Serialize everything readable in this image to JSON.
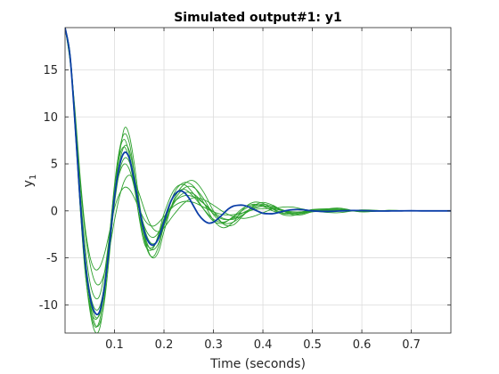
{
  "chart_data": {
    "type": "line",
    "title": "Simulated output#1: y1",
    "xlabel": "Time (seconds)",
    "ylabel": "y",
    "ylabel_sub": "1",
    "xlim": [
      0,
      0.78
    ],
    "ylim": [
      -13,
      19.5
    ],
    "xticks": [
      0.1,
      0.2,
      0.3,
      0.4,
      0.5,
      0.6,
      0.7
    ],
    "xtick_labels": [
      "0.1",
      "0.2",
      "0.3",
      "0.4",
      "0.5",
      "0.6",
      "0.7"
    ],
    "yticks": [
      -10,
      -5,
      0,
      5,
      10,
      15
    ],
    "ytick_labels": [
      "-10",
      "-5",
      "0",
      "5",
      "10",
      "15"
    ],
    "grid": true,
    "colors": {
      "nominal": "#0b3ea8",
      "samples": "#2ca02c",
      "axes": "#262626",
      "grid": "#dcdcdc"
    },
    "series": [
      {
        "role": "nominal",
        "x": [
          0,
          0.01,
          0.02,
          0.03,
          0.04,
          0.05,
          0.06,
          0.07,
          0.08,
          0.09,
          0.1,
          0.11,
          0.12,
          0.13,
          0.14,
          0.15,
          0.16,
          0.17,
          0.18,
          0.19,
          0.2,
          0.21,
          0.22,
          0.23,
          0.24,
          0.25,
          0.26,
          0.27,
          0.28,
          0.29,
          0.3,
          0.31,
          0.32,
          0.33,
          0.34,
          0.35,
          0.36,
          0.37,
          0.38,
          0.39,
          0.4,
          0.41,
          0.42,
          0.43,
          0.44,
          0.45,
          0.46,
          0.47,
          0.48,
          0.49,
          0.5,
          0.52,
          0.54,
          0.56,
          0.58,
          0.6,
          0.62,
          0.64,
          0.66,
          0.68,
          0.7,
          0.72,
          0.74,
          0.76,
          0.78
        ],
        "y": [
          19.5,
          16.5,
          9.5,
          1.5,
          -5.0,
          -9.0,
          -10.8,
          -10.7,
          -8.0,
          -3.5,
          1.5,
          4.8,
          6.2,
          5.6,
          3.2,
          0.3,
          -2.2,
          -3.4,
          -3.6,
          -2.8,
          -1.2,
          0.5,
          1.6,
          2.1,
          2.0,
          1.4,
          0.5,
          -0.4,
          -1.0,
          -1.3,
          -1.2,
          -0.8,
          -0.3,
          0.2,
          0.5,
          0.6,
          0.6,
          0.45,
          0.2,
          -0.05,
          -0.25,
          -0.3,
          -0.3,
          -0.2,
          -0.05,
          0.05,
          0.12,
          0.15,
          0.12,
          0.06,
          0.0,
          -0.06,
          -0.05,
          0.0,
          0.04,
          0.03,
          0.0,
          -0.02,
          -0.01,
          0.0,
          0.01,
          0.0,
          0.0,
          0.0,
          0.0
        ]
      },
      {
        "role": "sample",
        "x": [
          0,
          0.01,
          0.02,
          0.03,
          0.04,
          0.05,
          0.06,
          0.07,
          0.08,
          0.09,
          0.1,
          0.11,
          0.12,
          0.13,
          0.14,
          0.15,
          0.16,
          0.17,
          0.18,
          0.19,
          0.2,
          0.22,
          0.24,
          0.26,
          0.28,
          0.3,
          0.32,
          0.34,
          0.36,
          0.38,
          0.4,
          0.42,
          0.44,
          0.46,
          0.48,
          0.5,
          0.55,
          0.6,
          0.65,
          0.7,
          0.78
        ],
        "y": [
          19.5,
          16.8,
          10.0,
          1.0,
          -6.0,
          -10.5,
          -12.8,
          -12.5,
          -9.0,
          -3.0,
          2.5,
          6.5,
          8.2,
          7.2,
          4.0,
          0.0,
          -3.0,
          -4.6,
          -4.8,
          -3.6,
          -1.6,
          1.8,
          3.0,
          2.6,
          0.9,
          -1.0,
          -1.8,
          -1.2,
          0.2,
          0.9,
          0.8,
          0.2,
          -0.4,
          -0.5,
          -0.2,
          0.15,
          0.2,
          -0.1,
          0.05,
          0.0,
          0.0
        ]
      },
      {
        "role": "sample",
        "x": [
          0,
          0.01,
          0.02,
          0.03,
          0.04,
          0.05,
          0.06,
          0.07,
          0.08,
          0.09,
          0.1,
          0.11,
          0.12,
          0.13,
          0.14,
          0.15,
          0.16,
          0.17,
          0.18,
          0.19,
          0.2,
          0.22,
          0.24,
          0.26,
          0.28,
          0.3,
          0.32,
          0.34,
          0.36,
          0.38,
          0.4,
          0.42,
          0.44,
          0.46,
          0.48,
          0.5,
          0.55,
          0.6,
          0.65,
          0.7,
          0.78
        ],
        "y": [
          19.5,
          16.5,
          9.0,
          1.5,
          -5.0,
          -9.5,
          -12.0,
          -12.0,
          -9.5,
          -4.5,
          1.5,
          6.0,
          8.8,
          8.0,
          5.0,
          1.0,
          -2.5,
          -4.5,
          -5.0,
          -4.2,
          -2.2,
          1.2,
          2.8,
          3.2,
          2.0,
          0.0,
          -1.4,
          -1.5,
          -0.5,
          0.5,
          0.9,
          0.6,
          0.0,
          -0.4,
          -0.4,
          -0.1,
          0.3,
          -0.1,
          0.05,
          0.0,
          0.0
        ]
      },
      {
        "role": "sample",
        "x": [
          0,
          0.01,
          0.02,
          0.03,
          0.04,
          0.05,
          0.06,
          0.07,
          0.08,
          0.09,
          0.1,
          0.11,
          0.12,
          0.13,
          0.14,
          0.15,
          0.16,
          0.17,
          0.18,
          0.19,
          0.2,
          0.22,
          0.24,
          0.26,
          0.28,
          0.3,
          0.32,
          0.34,
          0.36,
          0.38,
          0.4,
          0.42,
          0.44,
          0.46,
          0.48,
          0.5,
          0.55,
          0.6,
          0.65,
          0.7,
          0.78
        ],
        "y": [
          19.5,
          16.2,
          9.8,
          2.5,
          -3.5,
          -7.5,
          -9.2,
          -9.0,
          -6.5,
          -2.5,
          1.5,
          4.0,
          5.0,
          4.4,
          2.5,
          0.3,
          -1.6,
          -2.6,
          -2.8,
          -2.2,
          -1.0,
          0.9,
          1.6,
          1.5,
          0.8,
          -0.1,
          -0.8,
          -0.9,
          -0.4,
          0.2,
          0.5,
          0.4,
          0.1,
          -0.2,
          -0.2,
          -0.1,
          0.1,
          0.0,
          0.0,
          0.0,
          0.0
        ]
      },
      {
        "role": "sample",
        "x": [
          0,
          0.01,
          0.02,
          0.03,
          0.04,
          0.05,
          0.06,
          0.07,
          0.08,
          0.09,
          0.1,
          0.11,
          0.12,
          0.13,
          0.14,
          0.15,
          0.16,
          0.17,
          0.18,
          0.19,
          0.2,
          0.22,
          0.24,
          0.26,
          0.28,
          0.3,
          0.32,
          0.34,
          0.36,
          0.38,
          0.4,
          0.42,
          0.44,
          0.46,
          0.48,
          0.5,
          0.55,
          0.6,
          0.65,
          0.7,
          0.78
        ],
        "y": [
          19.5,
          16.0,
          10.5,
          3.5,
          -2.0,
          -5.5,
          -7.5,
          -7.8,
          -6.5,
          -4.0,
          -1.0,
          1.5,
          3.2,
          3.8,
          3.2,
          1.8,
          0.2,
          -1.2,
          -2.0,
          -2.2,
          -1.8,
          -0.4,
          0.8,
          1.4,
          1.2,
          0.6,
          -0.1,
          -0.6,
          -0.8,
          -0.6,
          -0.2,
          0.2,
          0.4,
          0.4,
          0.2,
          0.0,
          -0.2,
          0.1,
          0.0,
          0.0,
          0.0
        ]
      },
      {
        "role": "sample",
        "x": [
          0,
          0.01,
          0.02,
          0.03,
          0.04,
          0.05,
          0.06,
          0.07,
          0.08,
          0.09,
          0.1,
          0.11,
          0.12,
          0.13,
          0.14,
          0.15,
          0.16,
          0.17,
          0.18,
          0.19,
          0.2,
          0.22,
          0.24,
          0.26,
          0.28,
          0.3,
          0.32,
          0.34,
          0.36,
          0.38,
          0.4,
          0.42,
          0.44,
          0.46,
          0.48,
          0.5,
          0.55,
          0.6,
          0.65,
          0.7,
          0.78
        ],
        "y": [
          19.5,
          16.6,
          9.2,
          0.8,
          -6.2,
          -10.0,
          -11.5,
          -10.8,
          -7.5,
          -2.5,
          2.5,
          5.8,
          6.8,
          5.4,
          2.5,
          -0.6,
          -2.9,
          -3.9,
          -3.7,
          -2.6,
          -0.8,
          1.6,
          2.3,
          1.5,
          0.2,
          -0.9,
          -1.2,
          -0.7,
          0.1,
          0.6,
          0.6,
          0.2,
          -0.2,
          -0.3,
          -0.1,
          0.1,
          0.1,
          0.0,
          0.0,
          0.0,
          0.0
        ]
      },
      {
        "role": "sample",
        "x": [
          0,
          0.01,
          0.02,
          0.03,
          0.04,
          0.05,
          0.06,
          0.07,
          0.08,
          0.09,
          0.1,
          0.11,
          0.12,
          0.13,
          0.14,
          0.15,
          0.16,
          0.17,
          0.18,
          0.19,
          0.2,
          0.22,
          0.24,
          0.26,
          0.28,
          0.3,
          0.32,
          0.34,
          0.36,
          0.38,
          0.4,
          0.42,
          0.44,
          0.46,
          0.48,
          0.5,
          0.55,
          0.6,
          0.65,
          0.7,
          0.78
        ],
        "y": [
          19.5,
          16.3,
          9.6,
          1.8,
          -4.5,
          -8.6,
          -10.4,
          -10.2,
          -7.8,
          -3.8,
          0.8,
          4.2,
          5.6,
          5.2,
          3.2,
          0.6,
          -1.8,
          -3.2,
          -3.5,
          -2.9,
          -1.5,
          0.8,
          1.9,
          1.8,
          0.8,
          -0.3,
          -0.9,
          -0.8,
          -0.2,
          0.3,
          0.5,
          0.3,
          0.0,
          -0.2,
          -0.2,
          0.0,
          0.1,
          0.0,
          0.0,
          0.0,
          0.0
        ]
      },
      {
        "role": "sample",
        "x": [
          0,
          0.01,
          0.02,
          0.03,
          0.04,
          0.05,
          0.06,
          0.07,
          0.08,
          0.09,
          0.1,
          0.11,
          0.12,
          0.13,
          0.14,
          0.15,
          0.16,
          0.17,
          0.18,
          0.19,
          0.2,
          0.22,
          0.24,
          0.26,
          0.28,
          0.3,
          0.32,
          0.34,
          0.36,
          0.38,
          0.4,
          0.42,
          0.44,
          0.46,
          0.48,
          0.5,
          0.55,
          0.6,
          0.65,
          0.7,
          0.78
        ],
        "y": [
          19.5,
          16.7,
          10.2,
          1.2,
          -5.8,
          -10.2,
          -12.3,
          -11.6,
          -8.2,
          -2.8,
          2.8,
          6.4,
          7.6,
          6.0,
          2.8,
          -0.8,
          -3.4,
          -4.2,
          -3.8,
          -2.3,
          -0.3,
          2.2,
          2.8,
          1.8,
          0.2,
          -1.1,
          -1.3,
          -0.6,
          0.3,
          0.7,
          0.5,
          0.0,
          -0.3,
          -0.3,
          -0.1,
          0.1,
          0.05,
          0.0,
          0.0,
          0.0,
          0.0
        ]
      },
      {
        "role": "sample",
        "x": [
          0,
          0.01,
          0.02,
          0.03,
          0.04,
          0.05,
          0.06,
          0.07,
          0.08,
          0.09,
          0.1,
          0.11,
          0.12,
          0.13,
          0.14,
          0.15,
          0.16,
          0.17,
          0.18,
          0.19,
          0.2,
          0.22,
          0.24,
          0.26,
          0.28,
          0.3,
          0.32,
          0.34,
          0.36,
          0.38,
          0.4,
          0.42,
          0.44,
          0.46,
          0.48,
          0.5,
          0.55,
          0.6,
          0.65,
          0.7,
          0.78
        ],
        "y": [
          19.5,
          16.4,
          9.9,
          2.0,
          -4.8,
          -9.2,
          -11.2,
          -11.0,
          -8.4,
          -3.9,
          1.2,
          5.1,
          6.9,
          6.4,
          3.9,
          0.6,
          -2.4,
          -3.9,
          -4.1,
          -3.3,
          -1.6,
          1.0,
          2.4,
          2.5,
          1.3,
          -0.4,
          -1.3,
          -1.2,
          -0.4,
          0.4,
          0.7,
          0.5,
          0.0,
          -0.3,
          -0.3,
          0.0,
          0.2,
          -0.05,
          0.0,
          0.0,
          0.0
        ]
      },
      {
        "role": "sample",
        "x": [
          0,
          0.01,
          0.02,
          0.03,
          0.04,
          0.05,
          0.06,
          0.07,
          0.08,
          0.09,
          0.1,
          0.11,
          0.12,
          0.13,
          0.14,
          0.15,
          0.16,
          0.17,
          0.18,
          0.19,
          0.2,
          0.22,
          0.24,
          0.26,
          0.28,
          0.3,
          0.32,
          0.34,
          0.36,
          0.38,
          0.4,
          0.42,
          0.44,
          0.46,
          0.48,
          0.5,
          0.55,
          0.6,
          0.65,
          0.7,
          0.78
        ],
        "y": [
          19.5,
          16.1,
          10.8,
          4.0,
          -1.5,
          -4.8,
          -6.2,
          -6.0,
          -4.5,
          -2.2,
          0.3,
          1.8,
          2.5,
          2.3,
          1.4,
          0.2,
          -0.9,
          -1.5,
          -1.6,
          -1.2,
          -0.6,
          0.5,
          1.0,
          0.9,
          0.4,
          -0.1,
          -0.4,
          -0.4,
          -0.2,
          0.1,
          0.25,
          0.2,
          0.05,
          -0.1,
          -0.1,
          0.0,
          0.05,
          0.0,
          0.0,
          0.0,
          0.0
        ]
      }
    ]
  }
}
